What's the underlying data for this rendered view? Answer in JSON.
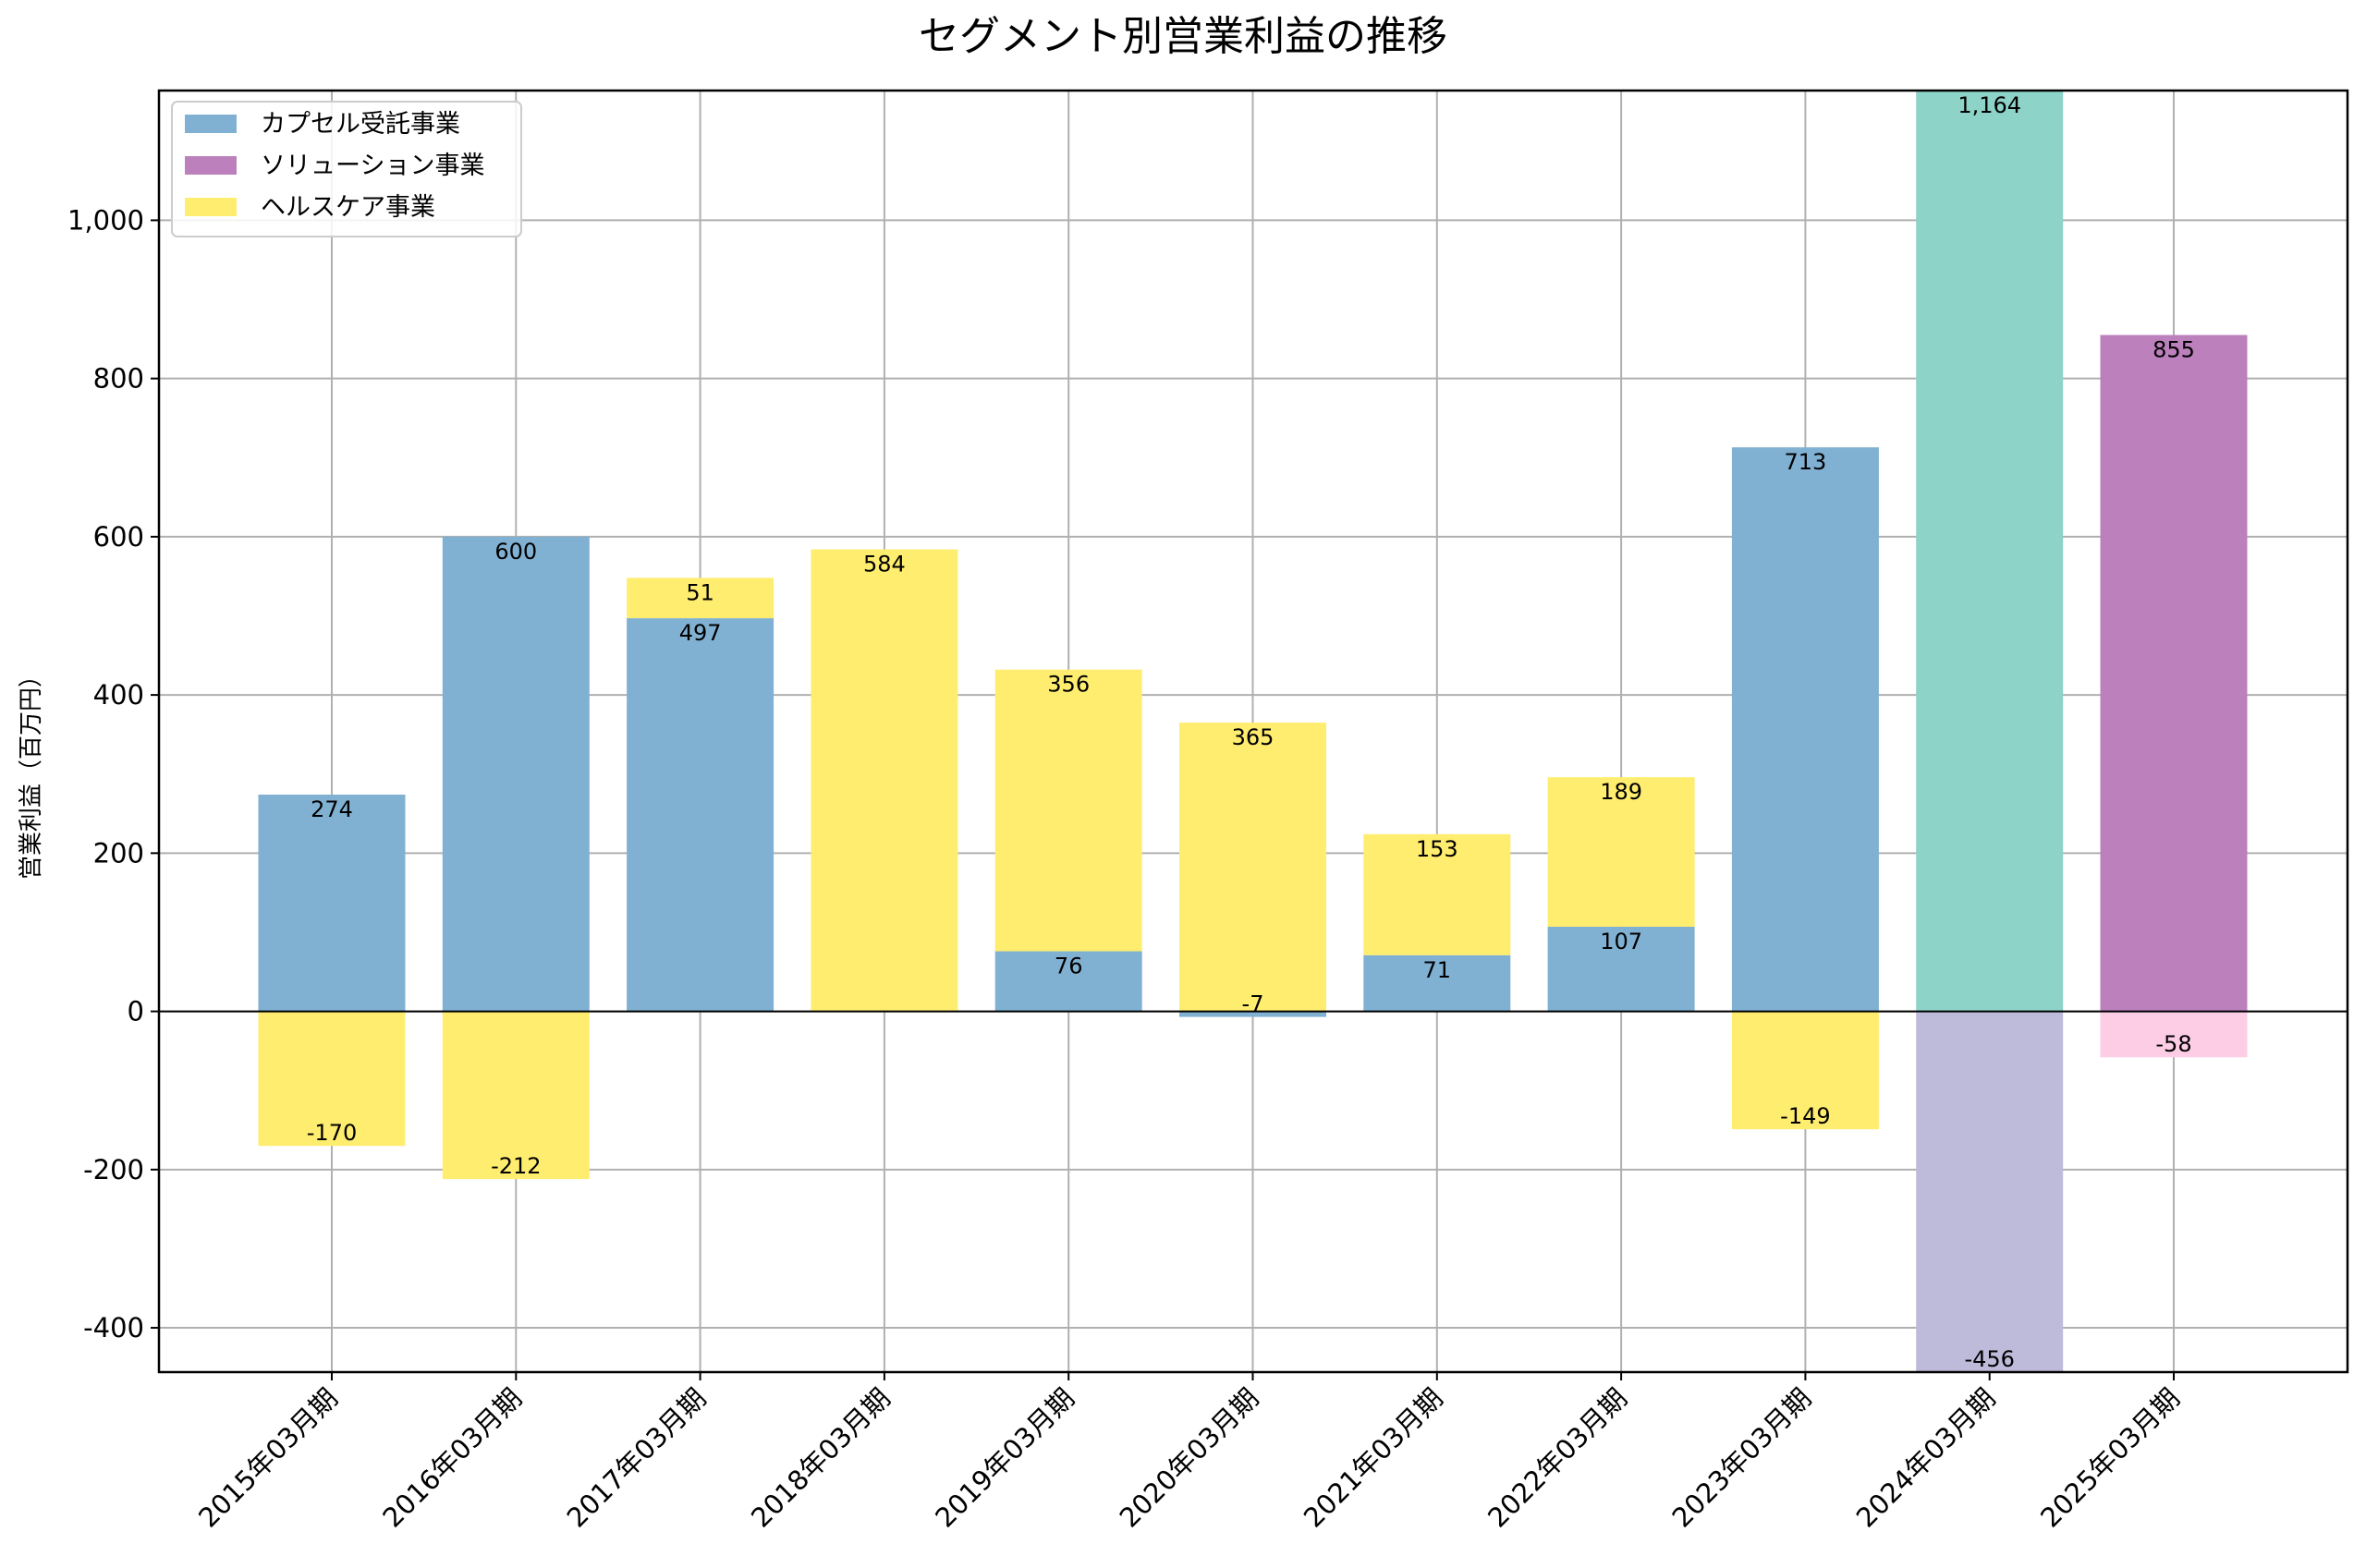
{
  "chart_data": {
    "type": "bar",
    "stacked": true,
    "title": "セグメント別営業利益の推移",
    "xlabel": "",
    "ylabel": "営業利益（百万円）",
    "ylim": [
      -456,
      1164
    ],
    "yticks": [
      -400,
      -200,
      0,
      200,
      400,
      600,
      800,
      1000
    ],
    "ytick_labels": [
      "-400",
      "-200",
      "0",
      "200",
      "400",
      "600",
      "800",
      "1,000"
    ],
    "grid": true,
    "legend_position": "top-left",
    "categories": [
      "2015年03月期",
      "2016年03月期",
      "2017年03月期",
      "2018年03月期",
      "2019年03月期",
      "2020年03月期",
      "2021年03月期",
      "2022年03月期",
      "2023年03月期",
      "2024年03月期",
      "2025年03月期"
    ],
    "series": [
      {
        "name": "カプセル受託事業",
        "color": "#80b1d3",
        "values": [
          274,
          600,
          497,
          null,
          76,
          -7,
          71,
          107,
          713,
          null,
          null
        ]
      },
      {
        "name": "ソリューション事業",
        "color": "#bc80bd",
        "values": [
          null,
          null,
          null,
          null,
          null,
          null,
          null,
          null,
          null,
          null,
          855
        ]
      },
      {
        "name": "ヘルスケア事業",
        "color": "#ffed6f",
        "values": [
          -170,
          -212,
          51,
          584,
          356,
          365,
          153,
          189,
          -149,
          null,
          null
        ]
      },
      {
        "name": "",
        "color": "#8dd3c7",
        "values": [
          null,
          null,
          null,
          null,
          null,
          null,
          null,
          null,
          null,
          1164,
          null
        ]
      },
      {
        "name": "",
        "color": "#bebada",
        "values": [
          null,
          null,
          null,
          null,
          null,
          null,
          null,
          null,
          null,
          -456,
          null
        ]
      },
      {
        "name": "",
        "color": "#fccde5",
        "values": [
          null,
          null,
          null,
          null,
          null,
          null,
          null,
          null,
          null,
          null,
          -58
        ]
      }
    ],
    "legend": [
      "カプセル受託事業",
      "ソリューション事業",
      "ヘルスケア事業"
    ]
  }
}
